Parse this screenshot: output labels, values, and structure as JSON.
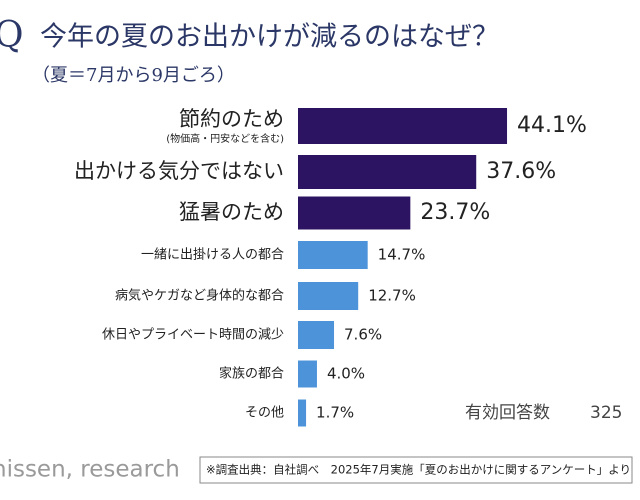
{
  "chart_data": {
    "type": "bar",
    "orientation": "horizontal",
    "question_mark": "Q",
    "title": "今年の夏のお出かけが減るのはなぜ？",
    "subtitle": "（夏＝7月から9月ごろ）",
    "categories": [
      "節約のため",
      "出かける気分ではない",
      "猛暑のため",
      "一緒に出掛ける人の都合",
      "病気やケガなど身体的な都合",
      "休日やプライベート時間の減少",
      "家族の都合",
      "その他"
    ],
    "category_notes": [
      "(物価高・円安などを含む)",
      null,
      null,
      null,
      null,
      null,
      null,
      null
    ],
    "values": [
      44.1,
      37.6,
      23.7,
      14.7,
      12.7,
      7.6,
      4.0,
      1.7
    ],
    "value_labels": [
      "44.1%",
      "37.6%",
      "23.7%",
      "14.7%",
      "12.7%",
      "7.6%",
      "4.0%",
      "1.7%"
    ],
    "colors": [
      "#2c1462",
      "#2c1462",
      "#2c1462",
      "#4d93d9",
      "#4d93d9",
      "#4d93d9",
      "#4d93d9",
      "#4d93d9"
    ],
    "sample_label": "有効回答数",
    "sample_size": 325,
    "source": "※調査出典：自社調べ　2025年7月実施「夏のお出かけに関するアンケート」より",
    "logo": "nissen, research"
  }
}
